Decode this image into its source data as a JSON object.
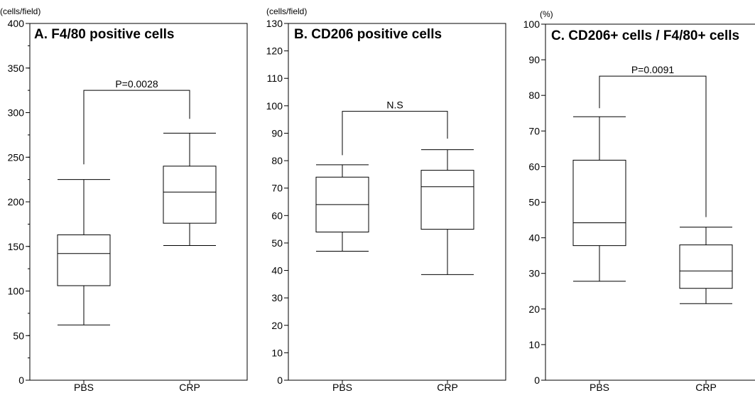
{
  "chart_data": [
    {
      "type": "box",
      "title": "A. F4/80 positive cells",
      "ylabel": "(cells/field)",
      "xlabel": "",
      "ylim": [
        0,
        400
      ],
      "ytick_step": 50,
      "yminor_step": 25,
      "categories": [
        "PBS",
        "CRP"
      ],
      "boxes": [
        {
          "min": 62,
          "q1": 106,
          "median": 142,
          "q3": 163,
          "max": 225
        },
        {
          "min": 151,
          "q1": 176,
          "median": 211,
          "q3": 240,
          "max": 277
        }
      ],
      "significance": {
        "label": "P=0.0028",
        "bar_y": 325,
        "left_end": 242,
        "right_end": 293
      }
    },
    {
      "type": "box",
      "title": "B. CD206 positive cells",
      "ylabel": "(cells/field)",
      "xlabel": "",
      "ylim": [
        0,
        130
      ],
      "ytick_step": 10,
      "yminor_step": 0,
      "categories": [
        "PBS",
        "CRP"
      ],
      "boxes": [
        {
          "min": 47,
          "q1": 54,
          "median": 64,
          "q3": 74,
          "max": 78.5
        },
        {
          "min": 38.5,
          "q1": 55,
          "median": 70.5,
          "q3": 76.5,
          "max": 84
        }
      ],
      "significance": {
        "label": "N.S",
        "bar_y": 98,
        "left_end": 82,
        "right_end": 88
      }
    },
    {
      "type": "box",
      "title": "C. CD206+ cells / F4/80+ cells",
      "ylabel": "(%)",
      "xlabel": "",
      "ylim": [
        0,
        100
      ],
      "ytick_step": 10,
      "yminor_step": 0,
      "categories": [
        "PBS",
        "CRP"
      ],
      "boxes": [
        {
          "min": 27.8,
          "q1": 37.8,
          "median": 44.2,
          "q3": 61.8,
          "max": 74
        },
        {
          "min": 21.5,
          "q1": 25.8,
          "median": 30.7,
          "q3": 38,
          "max": 43
        }
      ],
      "significance": {
        "label": "P=0.0091",
        "bar_y": 85.4,
        "left_end": 76.4,
        "right_end": 45.8
      }
    }
  ]
}
